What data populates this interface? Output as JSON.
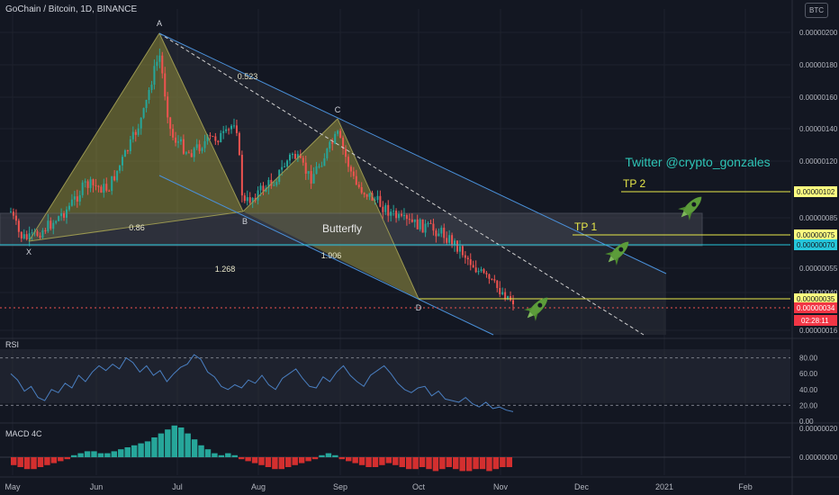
{
  "header": {
    "title": "GoChain / Bitcoin, 1D, BINANCE",
    "currency_badge": "BTC"
  },
  "rsi_label": "RSI",
  "macd_label": "MACD 4C",
  "twitter": "Twitter  @crypto_gonzales",
  "pattern_label": "Butterfly",
  "colors": {
    "background": "#131722",
    "up": "#26a69a",
    "down": "#ef5350",
    "channel": "#4a90d9",
    "harmonic": "#8f8c3a",
    "tp_line": "#e8e84a",
    "rsi_line": "#4a7fc1",
    "twitter": "#2ec4b6"
  },
  "icons": [
    "rocket-icon",
    "rocket-icon",
    "rocket-icon"
  ],
  "chart_data": {
    "type": "candlestick",
    "symbol": "GoChain / Bitcoin",
    "interval": "1D",
    "exchange": "BINANCE",
    "x_tick_labels": [
      "May",
      "Jun",
      "Jul",
      "Aug",
      "Sep",
      "Oct",
      "Nov",
      "Dec",
      "2021",
      "Feb"
    ],
    "y_tick_labels": [
      "0.00000200",
      "0.00000180",
      "0.00000160",
      "0.00000140",
      "0.00000120",
      "0.00000085",
      "0.00000055",
      "0.00000040",
      "0.00000016"
    ],
    "harmonic_points": [
      {
        "label": "X",
        "price": 6.8e-07
      },
      {
        "label": "A",
        "price": 2.01e-06
      },
      {
        "label": "B",
        "price": 8.8e-07
      },
      {
        "label": "C",
        "price": 1.47e-06
      },
      {
        "label": "D",
        "price": 3.8e-07
      }
    ],
    "ratios": [
      "0.523",
      "0.86",
      "1.906",
      "1.268"
    ],
    "levels": [
      {
        "label": "TP 2",
        "price_label": "0.00000102"
      },
      {
        "label": "TP 1",
        "price_label": "0.00000075"
      },
      {
        "label": "",
        "price_label": "0.00000070"
      },
      {
        "label": "",
        "price_label": "0.00000035"
      },
      {
        "label": "",
        "price_label": "0.00000034"
      }
    ],
    "countdown": "02:28:11",
    "rsi": {
      "levels": [
        "80.00",
        "60.00",
        "40.00",
        "20.00",
        "0.00"
      ],
      "values": [
        60,
        52,
        38,
        44,
        30,
        26,
        40,
        36,
        48,
        42,
        58,
        50,
        62,
        70,
        64,
        72,
        66,
        80,
        74,
        62,
        70,
        58,
        64,
        50,
        60,
        68,
        72,
        84,
        78,
        62,
        56,
        44,
        40,
        46,
        42,
        52,
        48,
        58,
        46,
        40,
        54,
        60,
        66,
        54,
        44,
        42,
        56,
        50,
        62,
        70,
        58,
        50,
        44,
        58,
        64,
        70,
        60,
        48,
        40,
        36,
        42,
        44,
        32,
        38,
        28,
        26,
        24,
        30,
        22,
        18,
        24,
        16,
        18,
        14,
        12
      ]
    },
    "macd": {
      "levels": [
        "0.00000020",
        "0.00000000"
      ],
      "values": [
        -4,
        -5,
        -6,
        -6,
        -5,
        -4,
        -3,
        -2,
        -1,
        1,
        2,
        3,
        3,
        2,
        2,
        3,
        4,
        5,
        6,
        7,
        8,
        10,
        12,
        14,
        16,
        15,
        12,
        9,
        6,
        4,
        2,
        1,
        2,
        1,
        -1,
        -2,
        -3,
        -4,
        -5,
        -6,
        -6,
        -5,
        -4,
        -3,
        -2,
        -1,
        1,
        2,
        1,
        -1,
        -2,
        -3,
        -4,
        -5,
        -5,
        -4,
        -3,
        -4,
        -5,
        -6,
        -6,
        -5,
        -6,
        -7,
        -6,
        -5,
        -6,
        -7,
        -7,
        -6,
        -6,
        -7,
        -6,
        -5,
        -5
      ]
    }
  }
}
